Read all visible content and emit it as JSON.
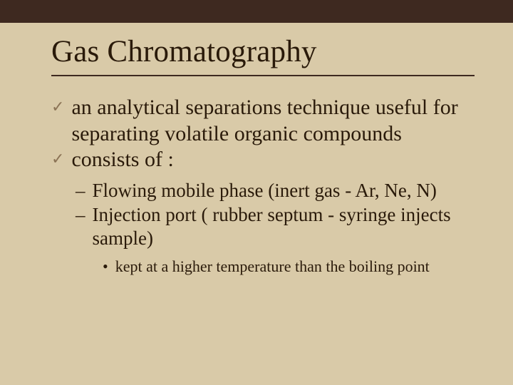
{
  "slide": {
    "background_color": "#d9caa8",
    "top_band_color": "#3e2920",
    "text_color": "#2a1a0a",
    "rule_color": "#3e2920",
    "title": {
      "text": "Gas Chromatography",
      "font_size_pt": 40,
      "font_family": "Times New Roman",
      "font_weight": "normal"
    },
    "level1": {
      "bullet_glyph": "✓",
      "bullet_color": "#8b7355",
      "font_size_pt": 28,
      "items": [
        {
          "text": "an analytical separations technique useful for separating volatile organic compounds"
        },
        {
          "text": "consists of :"
        }
      ]
    },
    "level2": {
      "bullet_glyph": "–",
      "font_size_pt": 24,
      "items": [
        {
          "text": "Flowing mobile phase (inert gas - Ar, Ne, N)"
        },
        {
          "text": "Injection port ( rubber septum - syringe injects sample)"
        }
      ]
    },
    "level3": {
      "bullet_glyph": "•",
      "font_size_pt": 20,
      "items": [
        {
          "text": "kept at a higher temperature than the boiling point"
        }
      ]
    }
  }
}
